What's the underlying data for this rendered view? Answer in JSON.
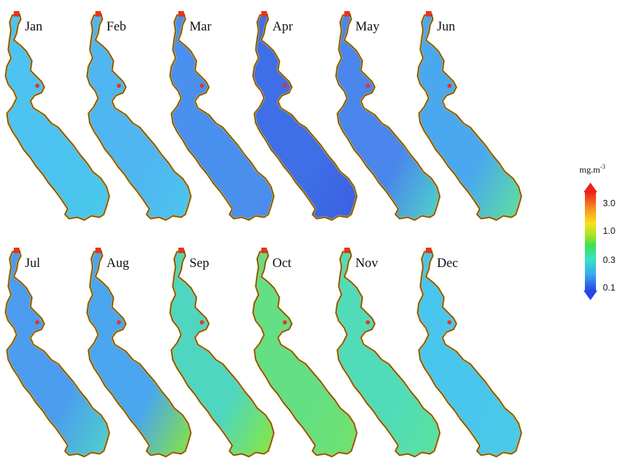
{
  "months": [
    {
      "label": "Jan",
      "fill": "#4cc3f0",
      "south": "#49c8ea"
    },
    {
      "label": "Feb",
      "fill": "#4fb6f2",
      "south": "#4bc6ec"
    },
    {
      "label": "Mar",
      "fill": "#4a90ee",
      "south": "#4a8cee"
    },
    {
      "label": "Apr",
      "fill": "#3f6fe6",
      "south": "#3a5fe2"
    },
    {
      "label": "May",
      "fill": "#4a86ec",
      "south": "#4fd6c8"
    },
    {
      "label": "Jun",
      "fill": "#4aa8ee",
      "south": "#5ee29a"
    },
    {
      "label": "Jul",
      "fill": "#4c9cef",
      "south": "#4fd4c8"
    },
    {
      "label": "Aug",
      "fill": "#4aa6ee",
      "south": "#86e83a"
    },
    {
      "label": "Sep",
      "fill": "#4ed6c0",
      "south": "#8ae838"
    },
    {
      "label": "Oct",
      "fill": "#64df84",
      "south": "#72e26a"
    },
    {
      "label": "Nov",
      "fill": "#50dcb8",
      "south": "#5ce29c"
    },
    {
      "label": "Dec",
      "fill": "#48c6ee",
      "south": "#4bcbe4"
    }
  ],
  "legend": {
    "unit": "mg.m",
    "unit_exponent": "-3",
    "ticks": [
      "3.0",
      "1.0",
      "0.3",
      "0.1"
    ],
    "colors": [
      "#e8241c",
      "#f79a22",
      "#f8e11c",
      "#a7e22a",
      "#3fe04e",
      "#38e3c6",
      "#39a8f0",
      "#2447e6"
    ]
  }
}
